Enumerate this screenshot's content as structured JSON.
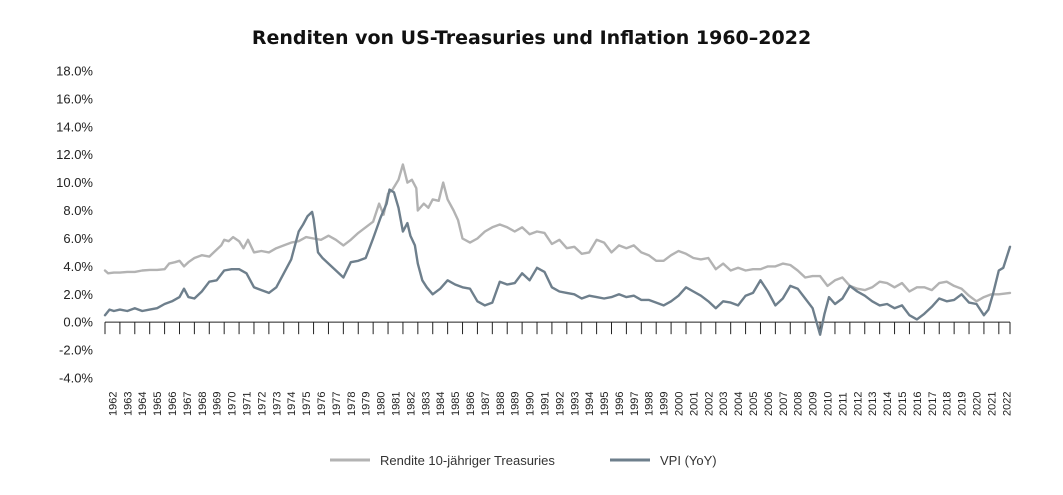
{
  "chart_data": {
    "type": "line",
    "title": "Renditen von US-Treasuries und Inflation 1960–2022",
    "xlabel": "",
    "ylabel": "",
    "ylim": [
      -4.0,
      18.0
    ],
    "xlim": [
      1962,
      2022.75
    ],
    "y_ticks": [
      "18.0%",
      "16.0%",
      "14.0%",
      "12.0%",
      "10.0%",
      "8.0%",
      "6.0%",
      "4.0%",
      "2.0%",
      "0.0%",
      "-2.0%",
      "-4.0%"
    ],
    "y_tick_values": [
      18,
      16,
      14,
      12,
      10,
      8,
      6,
      4,
      2,
      0,
      -2,
      -4
    ],
    "x_tick_labels": [
      "1962",
      "1963",
      "1964",
      "1965",
      "1966",
      "1967",
      "1968",
      "1969",
      "1970",
      "1971",
      "1972",
      "1973",
      "1974",
      "1975",
      "1976",
      "1977",
      "1978",
      "1979",
      "1980",
      "1981",
      "1982",
      "1983",
      "1984",
      "1985",
      "1986",
      "1987",
      "1988",
      "1989",
      "1990",
      "1991",
      "1992",
      "1993",
      "1994",
      "1995",
      "1996",
      "1997",
      "1998",
      "1999",
      "2000",
      "2001",
      "2002",
      "2003",
      "2004",
      "2005",
      "2006",
      "2007",
      "2008",
      "2009",
      "2010",
      "2011",
      "2012",
      "2013",
      "2014",
      "2015",
      "2016",
      "2017",
      "2018",
      "2019",
      "2020",
      "2021",
      "2022"
    ],
    "grid": false,
    "legend": "bottom",
    "series": [
      {
        "name": "Rendite 10-jähriger Treasuries",
        "color": "#b3b3b3",
        "points": [
          [
            1962.0,
            3.7
          ],
          [
            1962.2,
            3.5
          ],
          [
            1962.6,
            3.55
          ],
          [
            1963.0,
            3.55
          ],
          [
            1963.5,
            3.6
          ],
          [
            1964.0,
            3.6
          ],
          [
            1964.5,
            3.7
          ],
          [
            1965.0,
            3.75
          ],
          [
            1965.5,
            3.75
          ],
          [
            1966.0,
            3.8
          ],
          [
            1966.3,
            4.2
          ],
          [
            1966.7,
            4.3
          ],
          [
            1967.0,
            4.4
          ],
          [
            1967.3,
            4.0
          ],
          [
            1967.6,
            4.3
          ],
          [
            1968.0,
            4.6
          ],
          [
            1968.5,
            4.8
          ],
          [
            1969.0,
            4.7
          ],
          [
            1969.4,
            5.1
          ],
          [
            1969.8,
            5.5
          ],
          [
            1970.0,
            5.9
          ],
          [
            1970.3,
            5.8
          ],
          [
            1970.6,
            6.1
          ],
          [
            1971.0,
            5.8
          ],
          [
            1971.3,
            5.3
          ],
          [
            1971.6,
            5.9
          ],
          [
            1972.0,
            5.0
          ],
          [
            1972.5,
            5.1
          ],
          [
            1973.0,
            5.0
          ],
          [
            1973.5,
            5.3
          ],
          [
            1974.0,
            5.5
          ],
          [
            1974.5,
            5.7
          ],
          [
            1975.0,
            5.8
          ],
          [
            1975.5,
            6.1
          ],
          [
            1976.0,
            6.0
          ],
          [
            1976.5,
            5.9
          ],
          [
            1977.0,
            6.2
          ],
          [
            1977.5,
            5.9
          ],
          [
            1978.0,
            5.5
          ],
          [
            1978.5,
            5.9
          ],
          [
            1979.0,
            6.4
          ],
          [
            1979.5,
            6.8
          ],
          [
            1980.0,
            7.2
          ],
          [
            1980.4,
            8.5
          ],
          [
            1980.7,
            7.7
          ],
          [
            1981.0,
            9.2
          ],
          [
            1981.3,
            9.5
          ],
          [
            1981.7,
            10.2
          ],
          [
            1982.0,
            11.3
          ],
          [
            1982.3,
            10.0
          ],
          [
            1982.6,
            10.2
          ],
          [
            1982.9,
            9.6
          ],
          [
            1983.0,
            8.0
          ],
          [
            1983.4,
            8.5
          ],
          [
            1983.7,
            8.2
          ],
          [
            1984.0,
            8.8
          ],
          [
            1984.4,
            8.7
          ],
          [
            1984.7,
            10.0
          ],
          [
            1985.0,
            8.8
          ],
          [
            1985.4,
            8.0
          ],
          [
            1985.7,
            7.3
          ],
          [
            1986.0,
            6.0
          ],
          [
            1986.5,
            5.7
          ],
          [
            1987.0,
            6.0
          ],
          [
            1987.5,
            6.5
          ],
          [
            1988.0,
            6.8
          ],
          [
            1988.5,
            7.0
          ],
          [
            1989.0,
            6.8
          ],
          [
            1989.5,
            6.5
          ],
          [
            1990.0,
            6.8
          ],
          [
            1990.5,
            6.3
          ],
          [
            1991.0,
            6.5
          ],
          [
            1991.5,
            6.4
          ],
          [
            1992.0,
            5.6
          ],
          [
            1992.5,
            5.9
          ],
          [
            1993.0,
            5.3
          ],
          [
            1993.5,
            5.4
          ],
          [
            1994.0,
            4.9
          ],
          [
            1994.5,
            5.0
          ],
          [
            1995.0,
            5.9
          ],
          [
            1995.5,
            5.7
          ],
          [
            1996.0,
            5.0
          ],
          [
            1996.5,
            5.5
          ],
          [
            1997.0,
            5.3
          ],
          [
            1997.5,
            5.5
          ],
          [
            1998.0,
            5.0
          ],
          [
            1998.5,
            4.8
          ],
          [
            1999.0,
            4.4
          ],
          [
            1999.5,
            4.4
          ],
          [
            2000.0,
            4.8
          ],
          [
            2000.5,
            5.1
          ],
          [
            2001.0,
            4.9
          ],
          [
            2001.5,
            4.6
          ],
          [
            2002.0,
            4.5
          ],
          [
            2002.5,
            4.6
          ],
          [
            2003.0,
            3.8
          ],
          [
            2003.5,
            4.2
          ],
          [
            2004.0,
            3.7
          ],
          [
            2004.5,
            3.9
          ],
          [
            2005.0,
            3.7
          ],
          [
            2005.5,
            3.8
          ],
          [
            2006.0,
            3.8
          ],
          [
            2006.5,
            4.0
          ],
          [
            2007.0,
            4.0
          ],
          [
            2007.5,
            4.2
          ],
          [
            2008.0,
            4.1
          ],
          [
            2008.5,
            3.7
          ],
          [
            2009.0,
            3.2
          ],
          [
            2009.5,
            3.3
          ],
          [
            2010.0,
            3.3
          ],
          [
            2010.5,
            2.6
          ],
          [
            2011.0,
            3.0
          ],
          [
            2011.5,
            3.2
          ],
          [
            2012.0,
            2.6
          ],
          [
            2012.5,
            2.4
          ],
          [
            2013.0,
            2.3
          ],
          [
            2013.5,
            2.5
          ],
          [
            2014.0,
            2.9
          ],
          [
            2014.5,
            2.8
          ],
          [
            2015.0,
            2.5
          ],
          [
            2015.5,
            2.8
          ],
          [
            2016.0,
            2.2
          ],
          [
            2016.5,
            2.5
          ],
          [
            2017.0,
            2.5
          ],
          [
            2017.5,
            2.3
          ],
          [
            2018.0,
            2.8
          ],
          [
            2018.5,
            2.9
          ],
          [
            2019.0,
            2.6
          ],
          [
            2019.5,
            2.4
          ],
          [
            2020.0,
            1.9
          ],
          [
            2020.5,
            1.5
          ],
          [
            2021.0,
            1.8
          ],
          [
            2021.5,
            2.0
          ],
          [
            2022.0,
            2.0
          ],
          [
            2022.75,
            2.1
          ]
        ]
      },
      {
        "name": "VPI (YoY)",
        "color": "#6e7f8c",
        "points": [
          [
            1962.0,
            0.5
          ],
          [
            1962.3,
            0.9
          ],
          [
            1962.6,
            0.8
          ],
          [
            1963.0,
            0.9
          ],
          [
            1963.5,
            0.8
          ],
          [
            1964.0,
            1.0
          ],
          [
            1964.5,
            0.8
          ],
          [
            1965.0,
            0.9
          ],
          [
            1965.5,
            1.0
          ],
          [
            1966.0,
            1.3
          ],
          [
            1966.5,
            1.5
          ],
          [
            1967.0,
            1.8
          ],
          [
            1967.3,
            2.4
          ],
          [
            1967.6,
            1.8
          ],
          [
            1968.0,
            1.7
          ],
          [
            1968.5,
            2.2
          ],
          [
            1969.0,
            2.9
          ],
          [
            1969.5,
            3.0
          ],
          [
            1970.0,
            3.7
          ],
          [
            1970.5,
            3.8
          ],
          [
            1971.0,
            3.8
          ],
          [
            1971.5,
            3.5
          ],
          [
            1972.0,
            2.5
          ],
          [
            1972.5,
            2.3
          ],
          [
            1973.0,
            2.1
          ],
          [
            1973.5,
            2.5
          ],
          [
            1974.0,
            3.5
          ],
          [
            1974.5,
            4.5
          ],
          [
            1975.0,
            6.5
          ],
          [
            1975.3,
            7.0
          ],
          [
            1975.6,
            7.6
          ],
          [
            1975.9,
            7.9
          ],
          [
            1976.0,
            7.4
          ],
          [
            1976.3,
            5.0
          ],
          [
            1976.6,
            4.6
          ],
          [
            1977.0,
            4.2
          ],
          [
            1977.5,
            3.7
          ],
          [
            1978.0,
            3.2
          ],
          [
            1978.5,
            4.3
          ],
          [
            1979.0,
            4.4
          ],
          [
            1979.5,
            4.6
          ],
          [
            1980.0,
            6.0
          ],
          [
            1980.5,
            7.5
          ],
          [
            1980.9,
            8.5
          ],
          [
            1981.1,
            9.5
          ],
          [
            1981.4,
            9.3
          ],
          [
            1981.7,
            8.2
          ],
          [
            1982.0,
            6.5
          ],
          [
            1982.3,
            7.1
          ],
          [
            1982.5,
            6.2
          ],
          [
            1982.8,
            5.5
          ],
          [
            1983.0,
            4.2
          ],
          [
            1983.3,
            3.0
          ],
          [
            1983.6,
            2.5
          ],
          [
            1984.0,
            2.0
          ],
          [
            1984.5,
            2.4
          ],
          [
            1985.0,
            3.0
          ],
          [
            1985.5,
            2.7
          ],
          [
            1986.0,
            2.5
          ],
          [
            1986.5,
            2.4
          ],
          [
            1987.0,
            1.5
          ],
          [
            1987.5,
            1.2
          ],
          [
            1988.0,
            1.4
          ],
          [
            1988.5,
            2.9
          ],
          [
            1989.0,
            2.7
          ],
          [
            1989.5,
            2.8
          ],
          [
            1990.0,
            3.5
          ],
          [
            1990.5,
            3.0
          ],
          [
            1991.0,
            3.9
          ],
          [
            1991.5,
            3.6
          ],
          [
            1992.0,
            2.5
          ],
          [
            1992.5,
            2.2
          ],
          [
            1993.0,
            2.1
          ],
          [
            1993.5,
            2.0
          ],
          [
            1994.0,
            1.7
          ],
          [
            1994.5,
            1.9
          ],
          [
            1995.0,
            1.8
          ],
          [
            1995.5,
            1.7
          ],
          [
            1996.0,
            1.8
          ],
          [
            1996.5,
            2.0
          ],
          [
            1997.0,
            1.8
          ],
          [
            1997.5,
            1.9
          ],
          [
            1998.0,
            1.6
          ],
          [
            1998.5,
            1.6
          ],
          [
            1999.0,
            1.4
          ],
          [
            1999.5,
            1.2
          ],
          [
            2000.0,
            1.5
          ],
          [
            2000.5,
            1.9
          ],
          [
            2001.0,
            2.5
          ],
          [
            2001.5,
            2.2
          ],
          [
            2002.0,
            1.9
          ],
          [
            2002.5,
            1.5
          ],
          [
            2003.0,
            1.0
          ],
          [
            2003.5,
            1.5
          ],
          [
            2004.0,
            1.4
          ],
          [
            2004.5,
            1.2
          ],
          [
            2005.0,
            1.9
          ],
          [
            2005.5,
            2.1
          ],
          [
            2006.0,
            3.0
          ],
          [
            2006.5,
            2.2
          ],
          [
            2007.0,
            1.2
          ],
          [
            2007.5,
            1.7
          ],
          [
            2008.0,
            2.6
          ],
          [
            2008.5,
            2.4
          ],
          [
            2009.0,
            1.7
          ],
          [
            2009.5,
            1.0
          ],
          [
            2010.0,
            -0.9
          ],
          [
            2010.3,
            0.6
          ],
          [
            2010.6,
            1.8
          ],
          [
            2011.0,
            1.3
          ],
          [
            2011.5,
            1.7
          ],
          [
            2012.0,
            2.6
          ],
          [
            2012.5,
            2.2
          ],
          [
            2013.0,
            1.9
          ],
          [
            2013.5,
            1.5
          ],
          [
            2014.0,
            1.2
          ],
          [
            2014.5,
            1.3
          ],
          [
            2015.0,
            1.0
          ],
          [
            2015.5,
            1.2
          ],
          [
            2016.0,
            0.5
          ],
          [
            2016.5,
            0.2
          ],
          [
            2017.0,
            0.6
          ],
          [
            2017.5,
            1.1
          ],
          [
            2018.0,
            1.7
          ],
          [
            2018.5,
            1.5
          ],
          [
            2019.0,
            1.6
          ],
          [
            2019.5,
            2.0
          ],
          [
            2020.0,
            1.4
          ],
          [
            2020.5,
            1.3
          ],
          [
            2021.0,
            0.5
          ],
          [
            2021.3,
            0.9
          ],
          [
            2021.6,
            2.0
          ],
          [
            2022.0,
            3.7
          ],
          [
            2022.3,
            3.9
          ],
          [
            2022.75,
            5.4
          ]
        ]
      }
    ]
  }
}
